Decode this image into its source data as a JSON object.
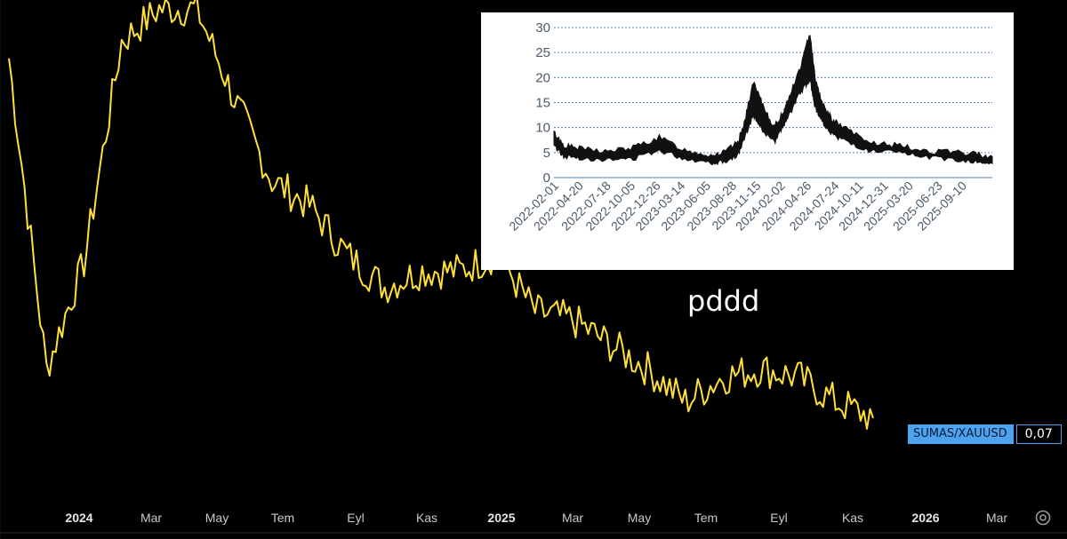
{
  "overlay_text": "pddd",
  "price_tag": {
    "symbol": "SUMAS/XAUUSD",
    "value": "0,07"
  },
  "main_chart": {
    "line_color": "#ffe03a",
    "x_tick_labels": [
      "2024",
      "Mar",
      "May",
      "Tem",
      "Eyl",
      "Kas",
      "2025",
      "Mar",
      "May",
      "Tem",
      "Eyl",
      "Kas",
      "2026",
      "Mar"
    ]
  },
  "settings_icon": "gear-icon",
  "chart_data": [
    {
      "type": "line",
      "x_tick_labels": [
        "2024",
        "Mar",
        "May",
        "Tem",
        "Eyl",
        "Kas",
        "2025",
        "Mar",
        "May",
        "Tem",
        "Eyl",
        "Kas",
        "2026",
        "Mar"
      ],
      "series": [
        {
          "name": "SUMAS/XAUUSD",
          "color": "#ffe03a",
          "last_value": "0,07",
          "x": [
            "2023-12",
            "2024-01",
            "2024-02",
            "2024-03",
            "2024-04",
            "2024-05",
            "2024-06",
            "2024-07",
            "2024-08",
            "2024-09",
            "2024-10",
            "2024-11",
            "2024-12",
            "2025-01",
            "2025-02",
            "2025-03",
            "2025-04",
            "2025-05",
            "2025-06",
            "2025-07",
            "2025-08",
            "2025-09",
            "2025-10",
            "2025-11"
          ],
          "values": [
            0.52,
            0.14,
            0.27,
            0.54,
            0.58,
            0.58,
            0.47,
            0.37,
            0.34,
            0.28,
            0.24,
            0.26,
            0.26,
            0.28,
            0.21,
            0.2,
            0.17,
            0.14,
            0.1,
            0.13,
            0.14,
            0.13,
            0.1,
            0.08
          ]
        }
      ]
    },
    {
      "type": "area",
      "ylim": [
        0,
        30
      ],
      "y_ticks": [
        0,
        5,
        10,
        15,
        20,
        25,
        30
      ],
      "grid": true,
      "x_tick_labels": [
        "2022-02-01",
        "2022-04-20",
        "2022-07-18",
        "2022-10-05",
        "2022-12-26",
        "2023-03-14",
        "2023-06-05",
        "2023-08-28",
        "2023-11-15",
        "2024-02-02",
        "2024-04-26",
        "2024-07-24",
        "2024-10-11",
        "2024-12-31",
        "2025-03-20",
        "2025-06-23",
        "2025-09-10"
      ],
      "series": [
        {
          "color": "#111111",
          "x": [
            "2022-02-01",
            "2022-03-01",
            "2022-04-20",
            "2022-07-18",
            "2022-10-05",
            "2022-12-26",
            "2023-03-14",
            "2023-06-05",
            "2023-07-15",
            "2023-08-28",
            "2023-09-20",
            "2023-10-15",
            "2023-11-15",
            "2023-12-20",
            "2024-01-20",
            "2024-02-02",
            "2024-03-10",
            "2024-04-10",
            "2024-04-26",
            "2024-05-20",
            "2024-06-20",
            "2024-07-24",
            "2024-10-11",
            "2024-12-31",
            "2025-03-20",
            "2025-06-23",
            "2025-09-10",
            "2025-11-01"
          ],
          "low": [
            6.5,
            4.2,
            4.0,
            3.5,
            3.8,
            5.5,
            3.8,
            3.0,
            3.2,
            4.5,
            8.0,
            12.5,
            9.5,
            7.0,
            10.5,
            12.0,
            17.0,
            19.5,
            14.0,
            11.0,
            8.5,
            7.5,
            5.2,
            5.0,
            4.3,
            3.6,
            3.2,
            2.8
          ],
          "high": [
            9.0,
            6.5,
            5.8,
            5.2,
            6.0,
            8.0,
            5.5,
            4.5,
            5.0,
            7.0,
            11.5,
            19.0,
            14.5,
            10.0,
            13.5,
            15.5,
            22.0,
            29.0,
            20.0,
            14.5,
            11.5,
            10.0,
            7.0,
            6.5,
            5.5,
            5.0,
            4.8,
            4.2
          ]
        }
      ]
    }
  ]
}
